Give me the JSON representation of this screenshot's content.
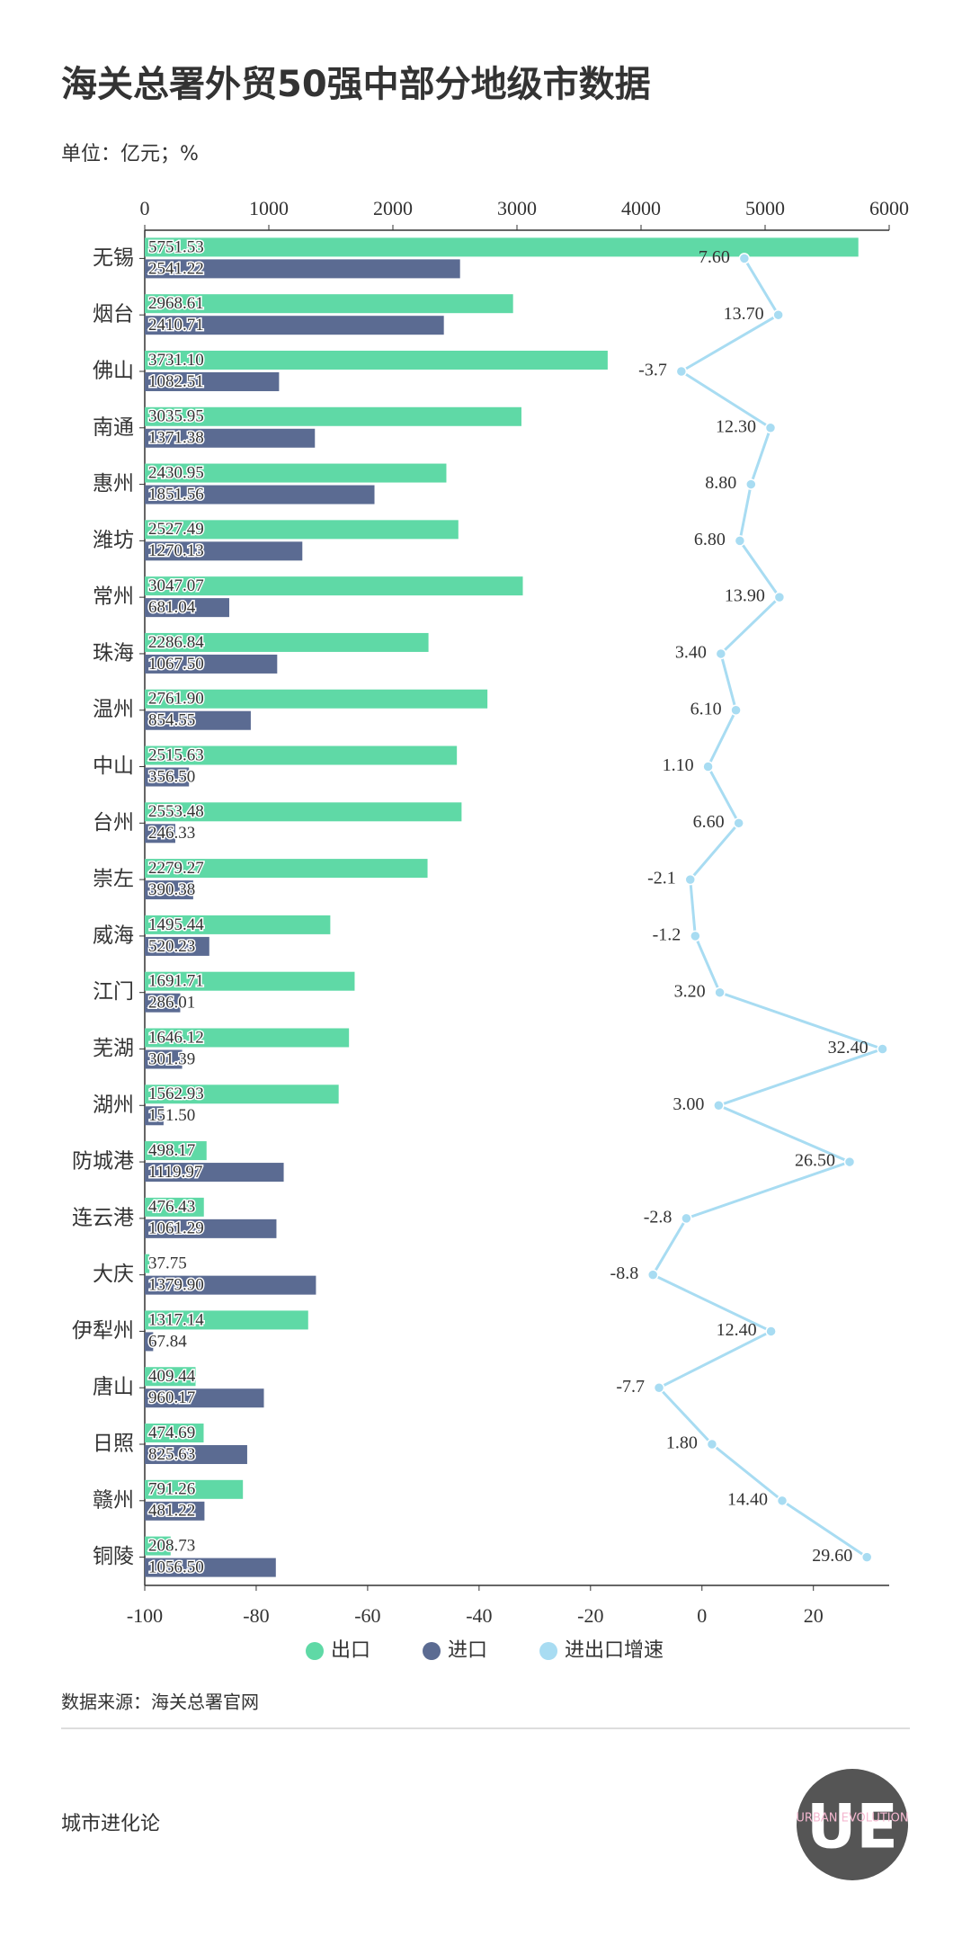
{
  "chart_data": {
    "type": "bar",
    "orientation": "horizontal",
    "title": "海关总署外贸50强中部分地级市数据",
    "subtitle": "单位：亿元；%",
    "source": "数据来源：海关总署官网",
    "footer": "城市进化论",
    "logo": "UE",
    "logo_text": "URBAN EVOLUTION",
    "categories": [
      "无锡",
      "烟台",
      "佛山",
      "南通",
      "惠州",
      "潍坊",
      "常州",
      "珠海",
      "温州",
      "中山",
      "台州",
      "崇左",
      "威海",
      "江门",
      "芜湖",
      "湖州",
      "防城港",
      "连云港",
      "大庆",
      "伊犁州",
      "唐山",
      "日照",
      "赣州",
      "铜陵"
    ],
    "xlim": [
      0,
      6000
    ],
    "xticks": [
      0,
      1000,
      2000,
      3000,
      4000,
      5000,
      6000
    ],
    "x2lim": [
      -100,
      33.6
    ],
    "x2ticks": [
      -100,
      -80,
      -60,
      -40,
      -20,
      0,
      20
    ],
    "legend": "bottom",
    "series": [
      {
        "name": "出口",
        "color": "#5fd9a6",
        "values": [
          5751.53,
          2968.61,
          3731.1,
          3035.95,
          2430.95,
          2527.49,
          3047.07,
          2286.84,
          2761.9,
          2515.63,
          2553.48,
          2279.27,
          1495.44,
          1691.71,
          1646.12,
          1562.93,
          498.17,
          476.43,
          37.75,
          1317.14,
          409.44,
          474.69,
          791.26,
          208.73
        ],
        "value_labels": [
          "5751.53",
          "2968.61",
          "3731.10",
          "3035.95",
          "2430.95",
          "2527.49",
          "3047.07",
          "2286.84",
          "2761.90",
          "2515.63",
          "2553.48",
          "2279.27",
          "1495.44",
          "1691.71",
          "1646.12",
          "1562.93",
          "498.17",
          "476.43",
          "37.75",
          "1317.14",
          "409.44",
          "474.69",
          "791.26",
          "208.73"
        ]
      },
      {
        "name": "进口",
        "color": "#5b6b92",
        "values": [
          2541.22,
          2410.71,
          1082.51,
          1371.38,
          1851.56,
          1270.13,
          681.04,
          1067.5,
          854.55,
          356.5,
          246.33,
          390.38,
          520.23,
          286.01,
          301.39,
          151.5,
          1119.97,
          1061.29,
          1379.9,
          67.84,
          960.17,
          825.63,
          481.22,
          1056.5
        ],
        "value_labels": [
          "2541.22",
          "2410.71",
          "1082.51",
          "1371.38",
          "1851.56",
          "1270.13",
          "681.04",
          "1067.50",
          "854.55",
          "356.50",
          "246.33",
          "390.38",
          "520.23",
          "286.01",
          "301.39",
          "151.50",
          "1119.97",
          "1061.29",
          "1379.90",
          "67.84",
          "960.17",
          "825.63",
          "481.22",
          "1056.50"
        ]
      },
      {
        "name": "进出口增速",
        "color": "#a8dcf2",
        "type": "line",
        "axis": "x2",
        "values": [
          7.6,
          13.7,
          -3.7,
          12.3,
          8.8,
          6.8,
          13.9,
          3.4,
          6.1,
          1.1,
          6.6,
          -2.1,
          -1.2,
          3.2,
          32.4,
          3.0,
          26.5,
          -2.8,
          -8.8,
          12.4,
          -7.7,
          1.8,
          14.4,
          29.6
        ],
        "value_labels": [
          "7.60",
          "13.70",
          "-3.7",
          "12.30",
          "8.80",
          "6.80",
          "13.90",
          "3.40",
          "6.10",
          "1.10",
          "6.60",
          "-2.1",
          "-1.2",
          "3.20",
          "32.40",
          "3.00",
          "26.50",
          "-2.8",
          "-8.8",
          "12.40",
          "-7.7",
          "1.80",
          "14.40",
          "29.60"
        ]
      }
    ]
  }
}
